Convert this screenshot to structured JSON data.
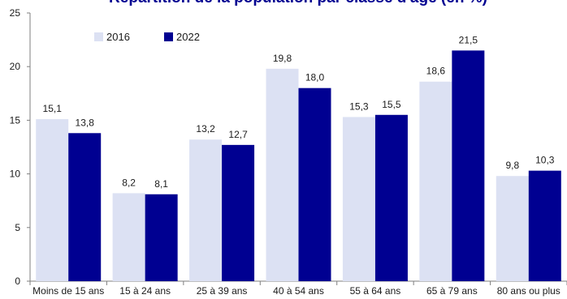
{
  "chart_data": {
    "type": "bar",
    "title": "Répartition de la population par classe d'âge (en %)",
    "xlabel": "",
    "ylabel": "",
    "categories": [
      "Moins de 15 ans",
      "15 à 24 ans",
      "25 à 39 ans",
      "40 à 54 ans",
      "55 à 64 ans",
      "65 à 79 ans",
      "80 ans ou plus"
    ],
    "series": [
      {
        "name": "2016",
        "values": [
          15.1,
          8.2,
          13.2,
          19.8,
          15.3,
          18.6,
          9.8
        ],
        "labels": [
          "15,1",
          "8,2",
          "13,2",
          "19,8",
          "15,3",
          "18,6",
          "9,8"
        ],
        "color": "#dce1f3"
      },
      {
        "name": "2022",
        "values": [
          13.8,
          8.1,
          12.7,
          18.0,
          15.5,
          21.5,
          10.3
        ],
        "labels": [
          "13,8",
          "8,1",
          "12,7",
          "18,0",
          "15,5",
          "21,5",
          "10,3"
        ],
        "color": "#000091"
      }
    ],
    "ylim": [
      0,
      25
    ],
    "yticks": [
      0,
      5,
      10,
      15,
      20,
      25
    ],
    "grid": false,
    "legend_position": "top-left",
    "title_color": "#000091"
  }
}
